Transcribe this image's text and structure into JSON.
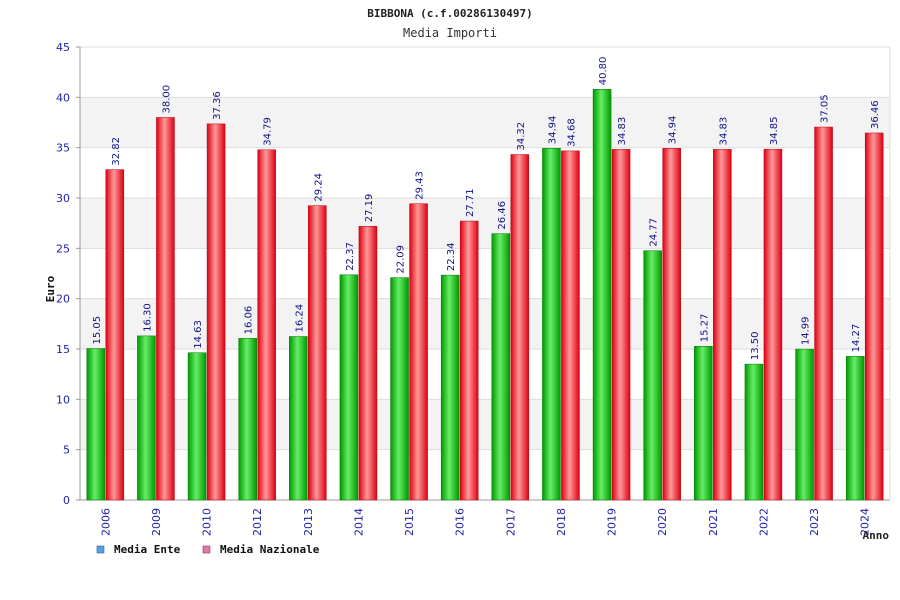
{
  "chart_data": {
    "type": "bar",
    "title": "BIBBONA (c.f.00286130497)",
    "subtitle": "Media Importi",
    "xlabel": "Anno",
    "ylabel": "Euro",
    "ylim": [
      0,
      45
    ],
    "yticks": [
      "0",
      "5",
      "10",
      "15",
      "20",
      "25",
      "30",
      "35",
      "40",
      "45"
    ],
    "grid": true,
    "legend_position": "bottom-left",
    "categories": [
      "2006",
      "2009",
      "2010",
      "2012",
      "2013",
      "2014",
      "2015",
      "2016",
      "2017",
      "2018",
      "2019",
      "2020",
      "2021",
      "2022",
      "2023",
      "2024"
    ],
    "series": [
      {
        "name": "Media Ente",
        "legend_color": "#5aa0e8",
        "bar_color": "#00aa00",
        "values": [
          15.05,
          16.3,
          14.63,
          16.06,
          16.24,
          22.37,
          22.09,
          22.34,
          26.46,
          34.94,
          40.8,
          24.77,
          15.27,
          13.5,
          14.99,
          14.27
        ],
        "labels": [
          "15.05",
          "16.30",
          "14.63",
          "16.06",
          "16.24",
          "22.37",
          "22.09",
          "22.34",
          "26.46",
          "34.94",
          "40.80",
          "24.77",
          "15.27",
          "13.50",
          "14.99",
          "14.27"
        ]
      },
      {
        "name": "Media Nazionale",
        "legend_color": "#e07aa8",
        "bar_color": "#ee1122",
        "values": [
          32.82,
          38.0,
          37.36,
          34.79,
          29.24,
          27.19,
          29.43,
          27.71,
          34.32,
          34.68,
          34.83,
          34.94,
          34.83,
          34.85,
          37.05,
          36.46
        ],
        "labels": [
          "32.82",
          "38.00",
          "37.36",
          "34.79",
          "29.24",
          "27.19",
          "29.43",
          "27.71",
          "34.32",
          "34.68",
          "34.83",
          "34.94",
          "34.83",
          "34.85",
          "37.05",
          "36.46"
        ]
      }
    ]
  }
}
